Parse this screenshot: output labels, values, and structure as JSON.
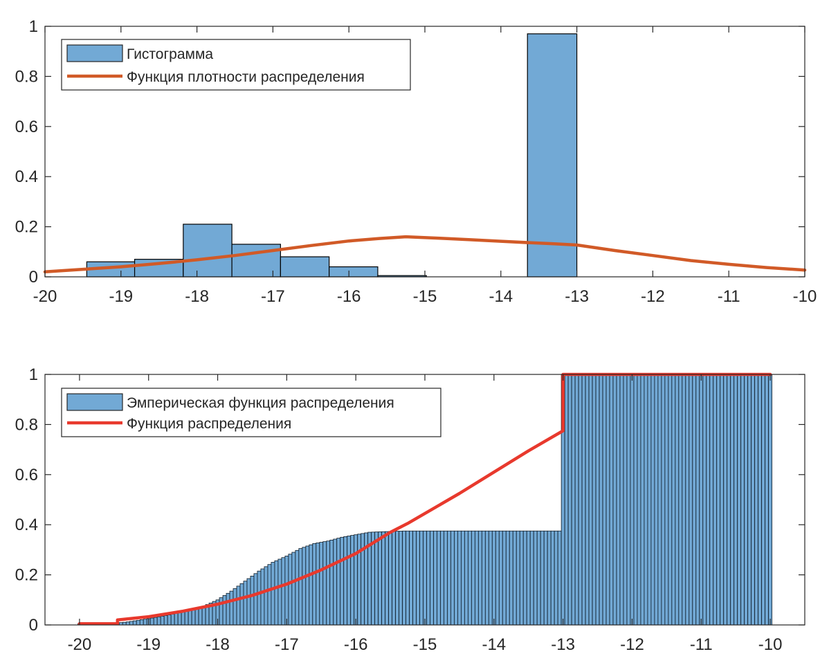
{
  "chart_data": [
    {
      "type": "bar",
      "title": "",
      "xlabel": "",
      "ylabel": "",
      "xlim": [
        -20,
        -10
      ],
      "ylim": [
        0,
        1
      ],
      "grid": false,
      "legend_position": "top-left",
      "xticks": [
        "-20",
        "-19",
        "-18",
        "-17",
        "-16",
        "-15",
        "-14",
        "-13",
        "-12",
        "-11",
        "-10"
      ],
      "yticks": [
        "0",
        "0.2",
        "0.4",
        "0.6",
        "0.8",
        "1"
      ],
      "series": [
        {
          "name": "Гистограмма",
          "kind": "histogram",
          "color": "#72a9d5",
          "edge_color": "#000000",
          "bins": [
            {
              "x0": -19.45,
              "x1": -18.82,
              "value": 0.06
            },
            {
              "x0": -18.82,
              "x1": -18.18,
              "value": 0.07
            },
            {
              "x0": -18.18,
              "x1": -17.54,
              "value": 0.21
            },
            {
              "x0": -17.54,
              "x1": -16.9,
              "value": 0.13
            },
            {
              "x0": -16.9,
              "x1": -16.26,
              "value": 0.08
            },
            {
              "x0": -16.26,
              "x1": -15.62,
              "value": 0.04
            },
            {
              "x0": -15.62,
              "x1": -14.98,
              "value": 0.005
            },
            {
              "x0": -14.98,
              "x1": -14.34,
              "value": 0
            },
            {
              "x0": -14.34,
              "x1": -13.7,
              "value": 0
            },
            {
              "x0": -13.65,
              "x1": -13.0,
              "value": 0.97
            }
          ]
        },
        {
          "name": "Функция плотности распределения",
          "kind": "line",
          "color": "#d15a27",
          "x": [
            -20,
            -19.5,
            -19,
            -18.5,
            -18,
            -17.5,
            -17,
            -16.5,
            -16,
            -15.6,
            -15.25,
            -14.8,
            -14.4,
            -14,
            -13.6,
            -13.3,
            -13,
            -12.5,
            -12,
            -11.5,
            -11,
            -10.5,
            -10
          ],
          "y": [
            0.02,
            0.03,
            0.04,
            0.053,
            0.068,
            0.085,
            0.105,
            0.125,
            0.143,
            0.153,
            0.16,
            0.154,
            0.148,
            0.142,
            0.136,
            0.132,
            0.127,
            0.105,
            0.085,
            0.065,
            0.05,
            0.037,
            0.027
          ]
        }
      ]
    },
    {
      "type": "bar",
      "title": "",
      "xlabel": "",
      "ylabel": "",
      "xlim": [
        -20.5,
        -9.5
      ],
      "ylim": [
        0,
        1
      ],
      "grid": false,
      "legend_position": "top-left",
      "xticks": [
        "-20",
        "-19",
        "-18",
        "-17",
        "-16",
        "-15",
        "-14",
        "-13",
        "-12",
        "-11",
        "-10"
      ],
      "yticks": [
        "0",
        "0.2",
        "0.4",
        "0.6",
        "0.8",
        "1"
      ],
      "series": [
        {
          "name": "Эмперическая функция распределения",
          "kind": "ecdf_bars",
          "color": "#72a9d5",
          "edge_color": "#0d1a26",
          "bar_count": 201,
          "bar_step": 0.05,
          "x": [
            -20,
            -19.5,
            -19.45,
            -19.3,
            -19,
            -18.7,
            -18.4,
            -18.2,
            -18,
            -17.8,
            -17.6,
            -17.4,
            -17.2,
            -17.0,
            -16.8,
            -16.6,
            -16.4,
            -16.2,
            -16.0,
            -15.8,
            -15.62,
            -15.3,
            -13.05,
            -13.0,
            -10
          ],
          "y": [
            0.005,
            0.005,
            0.008,
            0.012,
            0.025,
            0.04,
            0.06,
            0.075,
            0.1,
            0.135,
            0.175,
            0.215,
            0.25,
            0.275,
            0.305,
            0.325,
            0.335,
            0.35,
            0.36,
            0.37,
            0.372,
            0.375,
            0.375,
            1.0,
            1.0
          ]
        },
        {
          "name": "Функция распределения",
          "kind": "line",
          "color": "#e8392d",
          "x": [
            -20,
            -19.45,
            -19.45,
            -19,
            -18.5,
            -18,
            -17.5,
            -17,
            -16.5,
            -16,
            -15.5,
            -15.25,
            -14.5,
            -14,
            -13.5,
            -13,
            -13,
            -10
          ],
          "y": [
            0.005,
            0.005,
            0.02,
            0.033,
            0.055,
            0.083,
            0.118,
            0.163,
            0.22,
            0.285,
            0.37,
            0.405,
            0.525,
            0.61,
            0.695,
            0.775,
            1.0,
            1.0
          ]
        }
      ]
    }
  ]
}
